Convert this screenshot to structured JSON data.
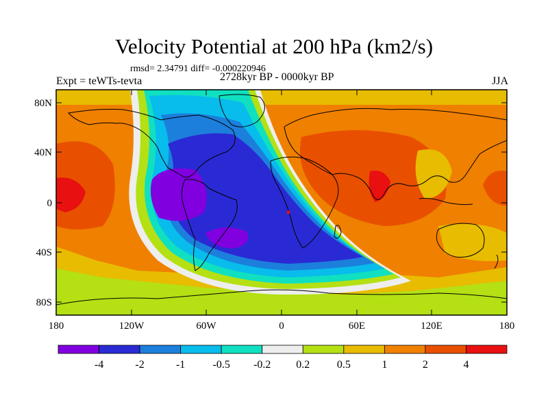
{
  "title": "Velocity Potential at 200 hPa (km2/s)",
  "stats": "rmsd= 2.34791  diff= -0.000220946",
  "experiment": "Expt = teWTs-tevta",
  "period": "2728kyr BP - 0000kyr BP",
  "season": "JJA",
  "axes": {
    "y_ticks": [
      "80N",
      "40N",
      "0",
      "40S",
      "80S"
    ],
    "x_ticks": [
      "180",
      "120W",
      "60W",
      "0",
      "60E",
      "120E",
      "180"
    ]
  },
  "colorbar": {
    "colors": [
      "#8000e0",
      "#2a2ad4",
      "#1c7fdc",
      "#08bcec",
      "#10e0c0",
      "#eeeeee",
      "#b4e014",
      "#e8bc00",
      "#f08000",
      "#e85000",
      "#e81010"
    ],
    "labels": [
      "-4",
      "-2",
      "-1",
      "-0.5",
      "-0.2",
      "0.2",
      "0.5",
      "1",
      "2",
      "4"
    ]
  },
  "palette": {
    "very_neg": "#8000e0",
    "neg4": "#2a2ad4",
    "neg2": "#1c7fdc",
    "neg1": "#08bcec",
    "neg05": "#10e0c0",
    "near0": "#eeeeee",
    "pos02": "#b4e014",
    "pos05": "#e8bc00",
    "pos1": "#f08000",
    "pos2": "#e85000",
    "pos4": "#e81010"
  }
}
